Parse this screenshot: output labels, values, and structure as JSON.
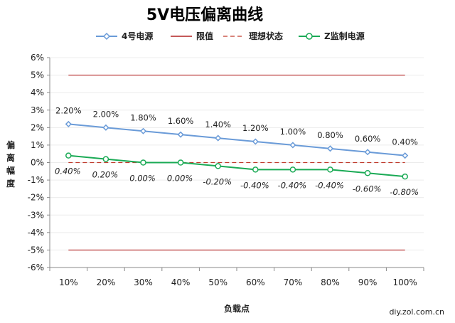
{
  "chart_data": {
    "type": "line",
    "title": "5V电压偏离曲线",
    "xlabel": "负载点",
    "ylabel": "偏离幅度",
    "categories": [
      "10%",
      "20%",
      "30%",
      "40%",
      "50%",
      "60%",
      "70%",
      "80%",
      "90%",
      "100%"
    ],
    "ylim": [
      -6,
      6
    ],
    "yticks": [
      -6,
      -5,
      -4,
      -3,
      -2,
      -1,
      0,
      1,
      2,
      3,
      4,
      5,
      6
    ],
    "grid": true,
    "legend_position": "top",
    "series": [
      {
        "name": "4号电源",
        "color": "#6a9bd8",
        "style": "line-with-open-diamonds",
        "values": [
          2.2,
          2.0,
          1.8,
          1.6,
          1.4,
          1.2,
          1.0,
          0.8,
          0.6,
          0.4
        ],
        "labels": [
          "2.20%",
          "2.00%",
          "1.80%",
          "1.60%",
          "1.40%",
          "1.20%",
          "1.00%",
          "0.80%",
          "0.60%",
          "0.40%"
        ]
      },
      {
        "name": "限值",
        "color": "#b22222",
        "style": "solid",
        "upper": 5,
        "lower": -5
      },
      {
        "name": "理想状态",
        "color": "#c0392b",
        "style": "dashed",
        "value": 0
      },
      {
        "name": "Z监制电源",
        "color": "#1aaa55",
        "style": "line-with-open-circles",
        "values": [
          0.4,
          0.2,
          0.0,
          0.0,
          -0.2,
          -0.4,
          -0.4,
          -0.4,
          -0.6,
          -0.8
        ],
        "labels": [
          "0.40%",
          "0.20%",
          "0.00%",
          "0.00%",
          "-0.20%",
          "-0.40%",
          "-0.40%",
          "-0.40%",
          "-0.60%",
          "-0.80%"
        ]
      }
    ]
  },
  "source": "diy.zol.com.cn",
  "colors": {
    "axis": "#888888",
    "grid": "#ececec"
  }
}
